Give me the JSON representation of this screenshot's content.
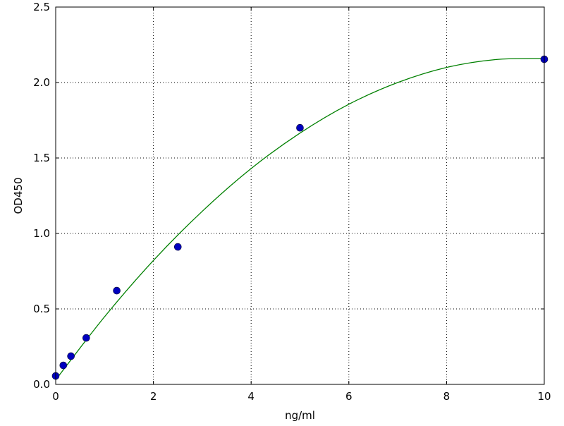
{
  "chart_data": {
    "type": "scatter",
    "title": "",
    "xlabel": "ng/ml",
    "ylabel": "OD450",
    "xlim": [
      0,
      10
    ],
    "ylim": [
      0,
      2.5
    ],
    "xticks": [
      "0",
      "2",
      "4",
      "6",
      "8",
      "10"
    ],
    "yticks": [
      "0.0",
      "0.5",
      "1.0",
      "1.5",
      "2.0",
      "2.5"
    ],
    "grid": true,
    "points": {
      "color": "#0000bf",
      "x": [
        0,
        0.156,
        0.3125,
        0.625,
        1.25,
        2.5,
        5,
        10
      ],
      "y": [
        0.056,
        0.126,
        0.187,
        0.308,
        0.621,
        0.911,
        1.7,
        2.154
      ]
    },
    "fit_curve": {
      "color": "#008000",
      "x": [
        0,
        1,
        2,
        3,
        4,
        5,
        6,
        7,
        8,
        9,
        10
      ],
      "y": [
        0.03,
        0.448,
        0.821,
        1.147,
        1.43,
        1.665,
        1.856,
        2.0,
        2.1,
        2.152,
        2.16
      ]
    }
  }
}
